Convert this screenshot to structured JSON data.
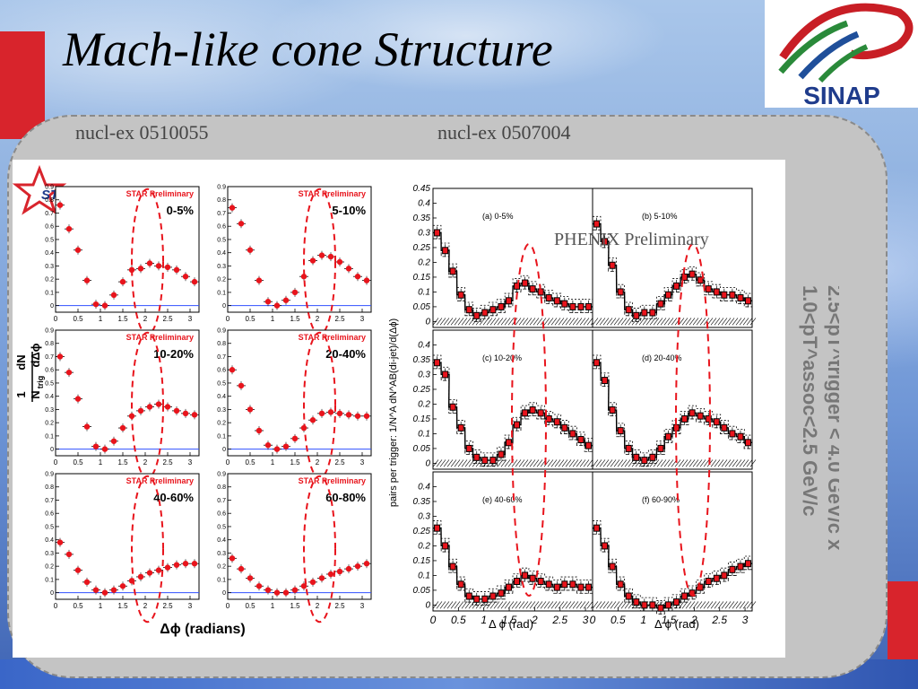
{
  "slide": {
    "title": "Mach-like cone Structure",
    "ref_left": "nucl-ex 0510055",
    "ref_right": "nucl-ex 0507004",
    "logo_text": "SINAP"
  },
  "colors": {
    "accent_red": "#d8242c",
    "data_red": "#e8141c",
    "blue_line": "#3050ff",
    "panel_gray": "#c4c4c4"
  },
  "star": {
    "logo_text": "STAR",
    "ylabel_num": "1",
    "ylabel_den": "N",
    "ylabel_sub": "trig",
    "ylabel_dn": "dN",
    "ylabel_dphi": "dΔϕ",
    "xlabel": "Δϕ (radians)",
    "preliminary": "STAR Preliminary"
  },
  "phenix": {
    "ylabel": "pairs per trigger: 1/N^A dN^AB(di-jet)/d(Δϕ)",
    "xlabel": "Δ ϕ (rad)",
    "preliminary": "PHENIX Preliminary",
    "side_label_1": "2.5<pT^trigger < 4.0 GeV/c x",
    "side_label_2": "1.0<pT^assoc<2.5 GeV/c"
  },
  "chart_data": [
    {
      "type": "scatter",
      "experiment": "STAR",
      "xlim": [
        0,
        3.2
      ],
      "ylim": [
        -0.05,
        0.9
      ],
      "yticks": [
        "0",
        "0.1",
        "0.2",
        "0.3",
        "0.4",
        "0.5",
        "0.6",
        "0.7",
        "0.8",
        "0.9"
      ],
      "xticks": [
        "0",
        "0.5",
        "1",
        "1.5",
        "2",
        "2.5",
        "3"
      ],
      "x": [
        0.1,
        0.3,
        0.5,
        0.7,
        0.9,
        1.1,
        1.3,
        1.5,
        1.7,
        1.9,
        2.1,
        2.3,
        2.5,
        2.7,
        2.9,
        3.1
      ],
      "panels": [
        {
          "label": "0-5%",
          "values": [
            0.76,
            0.58,
            0.42,
            0.19,
            0.01,
            0.0,
            0.08,
            0.18,
            0.27,
            0.28,
            0.32,
            0.3,
            0.29,
            0.27,
            0.22,
            0.18
          ]
        },
        {
          "label": "5-10%",
          "values": [
            0.74,
            0.62,
            0.42,
            0.19,
            0.03,
            0.0,
            0.04,
            0.1,
            0.22,
            0.34,
            0.38,
            0.37,
            0.33,
            0.28,
            0.22,
            0.19
          ]
        },
        {
          "label": "10-20%",
          "values": [
            0.7,
            0.58,
            0.38,
            0.17,
            0.02,
            0.0,
            0.06,
            0.16,
            0.25,
            0.29,
            0.32,
            0.34,
            0.32,
            0.29,
            0.27,
            0.26
          ]
        },
        {
          "label": "20-40%",
          "values": [
            0.6,
            0.48,
            0.3,
            0.14,
            0.03,
            0.0,
            0.02,
            0.08,
            0.16,
            0.22,
            0.27,
            0.28,
            0.27,
            0.26,
            0.25,
            0.25
          ]
        },
        {
          "label": "40-60%",
          "values": [
            0.38,
            0.29,
            0.17,
            0.08,
            0.02,
            0.0,
            0.02,
            0.05,
            0.09,
            0.12,
            0.15,
            0.17,
            0.19,
            0.21,
            0.22,
            0.22
          ]
        },
        {
          "label": "60-80%",
          "values": [
            0.26,
            0.18,
            0.11,
            0.05,
            0.02,
            0.0,
            0.0,
            0.02,
            0.05,
            0.08,
            0.11,
            0.14,
            0.16,
            0.18,
            0.2,
            0.22
          ]
        }
      ]
    },
    {
      "type": "scatter",
      "experiment": "PHENIX",
      "xlim": [
        0,
        3.14
      ],
      "ylim": [
        -0.02,
        0.45
      ],
      "yticks_top": [
        "0",
        "0.05",
        "0.1",
        "0.15",
        "0.2",
        "0.25",
        "0.3",
        "0.35",
        "0.4",
        "0.45"
      ],
      "yticks": [
        "0",
        "0.05",
        "0.1",
        "0.15",
        "0.2",
        "0.25",
        "0.3",
        "0.35",
        "0.4"
      ],
      "xticks": [
        "0",
        "0.5",
        "1",
        "1.5",
        "2",
        "2.5",
        "3"
      ],
      "x": [
        0.08,
        0.24,
        0.39,
        0.55,
        0.71,
        0.86,
        1.02,
        1.18,
        1.34,
        1.49,
        1.65,
        1.81,
        1.96,
        2.12,
        2.28,
        2.44,
        2.59,
        2.75,
        2.91,
        3.06
      ],
      "panels": [
        {
          "label": "(a) 0-5%",
          "values": [
            0.3,
            0.24,
            0.17,
            0.09,
            0.04,
            0.02,
            0.03,
            0.04,
            0.05,
            0.07,
            0.12,
            0.13,
            0.11,
            0.1,
            0.08,
            0.07,
            0.06,
            0.05,
            0.05,
            0.05
          ]
        },
        {
          "label": "(b) 5-10%",
          "values": [
            0.33,
            0.27,
            0.19,
            0.1,
            0.04,
            0.02,
            0.03,
            0.03,
            0.06,
            0.09,
            0.12,
            0.15,
            0.16,
            0.14,
            0.11,
            0.1,
            0.09,
            0.09,
            0.08,
            0.07
          ]
        },
        {
          "label": "(c) 10-20%",
          "values": [
            0.34,
            0.3,
            0.19,
            0.12,
            0.05,
            0.02,
            0.01,
            0.01,
            0.03,
            0.07,
            0.13,
            0.17,
            0.18,
            0.17,
            0.15,
            0.14,
            0.12,
            0.1,
            0.08,
            0.06
          ]
        },
        {
          "label": "(d) 20-40%",
          "values": [
            0.34,
            0.28,
            0.18,
            0.11,
            0.05,
            0.02,
            0.01,
            0.02,
            0.05,
            0.09,
            0.12,
            0.15,
            0.17,
            0.16,
            0.15,
            0.14,
            0.12,
            0.1,
            0.09,
            0.07
          ]
        },
        {
          "label": "(e) 40-60%",
          "values": [
            0.26,
            0.2,
            0.13,
            0.07,
            0.03,
            0.02,
            0.02,
            0.03,
            0.04,
            0.06,
            0.08,
            0.1,
            0.09,
            0.08,
            0.07,
            0.06,
            0.07,
            0.07,
            0.06,
            0.06
          ]
        },
        {
          "label": "(f) 60-90%",
          "values": [
            0.26,
            0.2,
            0.13,
            0.07,
            0.03,
            0.01,
            0.0,
            0.0,
            -0.01,
            0.0,
            0.01,
            0.03,
            0.04,
            0.06,
            0.08,
            0.09,
            0.1,
            0.12,
            0.13,
            0.14
          ]
        }
      ]
    }
  ]
}
